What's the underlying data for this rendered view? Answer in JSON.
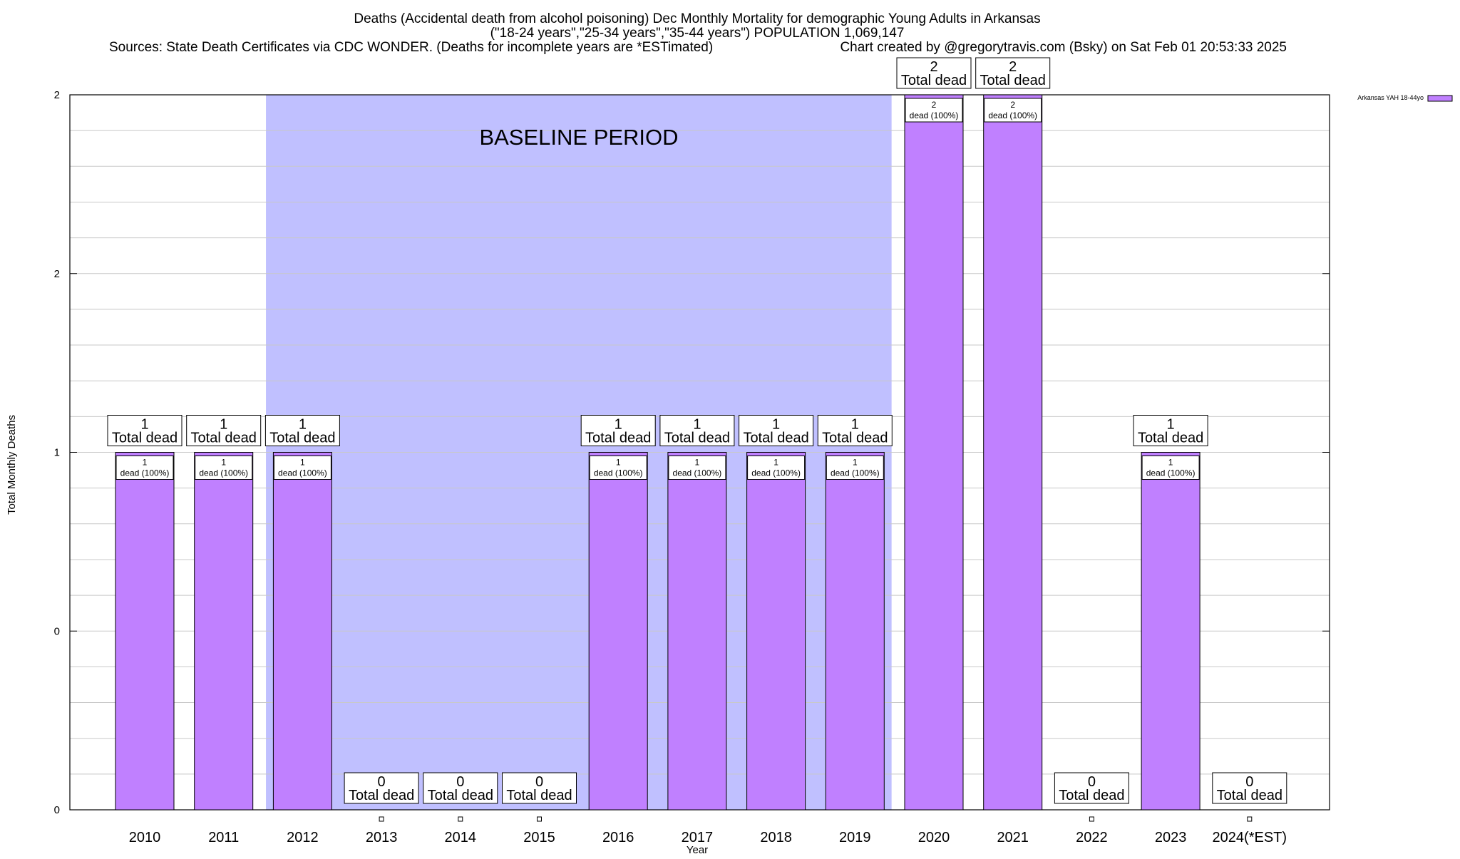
{
  "chart_data": {
    "type": "bar",
    "title_lines": [
      "Deaths (Accidental death from alcohol poisoning) Dec Monthly Mortality for demographic Young Adults in Arkansas",
      "(\"18-24 years\",\"25-34 years\",\"35-44 years\") POPULATION 1,069,147"
    ],
    "sources": "Sources: State Death Certificates via CDC WONDER. (Deaths for incomplete years are *ESTimated)",
    "credit": "Chart created by @gregorytravis.com (Bsky) on Sat Feb 01 20:53:33 2025",
    "xlabel": "Year",
    "ylabel": "Total Monthly Deaths",
    "ylim": [
      0,
      2
    ],
    "y_tick_labels": [
      "0",
      "0",
      "1",
      "2",
      "2"
    ],
    "grid": true,
    "legend": {
      "label": "Arkansas YAH 18-44yo",
      "placement": "top-right"
    },
    "baseline": {
      "label": "BASELINE PERIOD",
      "start": "2012",
      "end": "2019"
    },
    "categories": [
      "2010",
      "2011",
      "2012",
      "2013",
      "2014",
      "2015",
      "2016",
      "2017",
      "2018",
      "2019",
      "2020",
      "2021",
      "2022",
      "2023",
      "2024(*EST)"
    ],
    "series": [
      {
        "name": "Arkansas YAH 18-44yo",
        "values": [
          1,
          1,
          1,
          0,
          0,
          0,
          1,
          1,
          1,
          1,
          2,
          2,
          0,
          1,
          0
        ]
      }
    ],
    "total_labels": [
      [
        "1",
        "Total dead"
      ],
      [
        "1",
        "Total dead"
      ],
      [
        "1",
        "Total dead"
      ],
      [
        "0",
        "Total dead"
      ],
      [
        "0",
        "Total dead"
      ],
      [
        "0",
        "Total dead"
      ],
      [
        "1",
        "Total dead"
      ],
      [
        "1",
        "Total dead"
      ],
      [
        "1",
        "Total dead"
      ],
      [
        "1",
        "Total dead"
      ],
      [
        "2",
        "Total dead"
      ],
      [
        "2",
        "Total dead"
      ],
      [
        "0",
        "Total dead"
      ],
      [
        "1",
        "Total dead"
      ],
      [
        "0",
        "Total dead"
      ]
    ],
    "bar_labels": [
      [
        "1",
        "dead (100%)"
      ],
      [
        "1",
        "dead (100%)"
      ],
      [
        "1",
        "dead (100%)"
      ],
      null,
      null,
      null,
      [
        "1",
        "dead (100%)"
      ],
      [
        "1",
        "dead (100%)"
      ],
      [
        "1",
        "dead (100%)"
      ],
      [
        "1",
        "dead (100%)"
      ],
      [
        "2",
        "dead (100%)"
      ],
      [
        "2",
        "dead (100%)"
      ],
      null,
      [
        "1",
        "dead (100%)"
      ],
      null
    ],
    "colors": {
      "bar": "#c080ff",
      "baseline": "#c0c0ff",
      "grid": "#c8c8c8"
    }
  }
}
